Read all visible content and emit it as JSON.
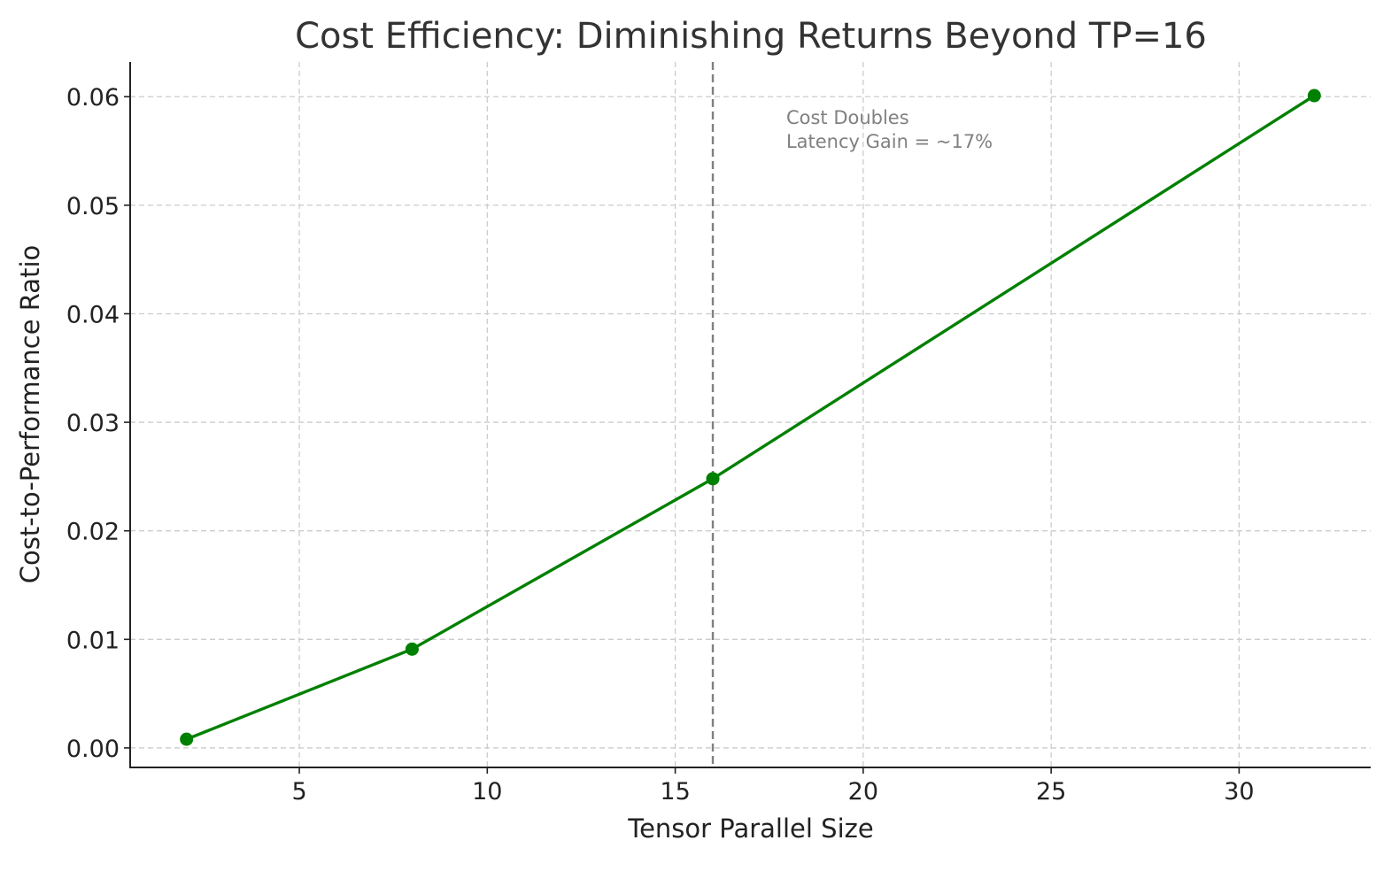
{
  "chart_data": {
    "type": "line",
    "title": "Cost Efficiency: Diminishing Returns Beyond TP=16",
    "xlabel": "Tensor Parallel Size",
    "ylabel": "Cost-to-Performance Ratio",
    "x": [
      2,
      8,
      16,
      32
    ],
    "series": [
      {
        "values": [
          0.0008,
          0.0091,
          0.0248,
          0.0601
        ],
        "color": "#008000",
        "marker": "circle"
      }
    ],
    "xlim": [
      0.5,
      33.5
    ],
    "ylim": [
      -0.0018,
      0.0632
    ],
    "xticks": [
      5,
      10,
      15,
      20,
      25,
      30
    ],
    "xtick_labels": [
      "5",
      "10",
      "15",
      "20",
      "25",
      "30"
    ],
    "yticks": [
      0,
      0.01,
      0.02,
      0.03,
      0.04,
      0.05,
      0.06
    ],
    "ytick_labels": [
      "0.00",
      "0.01",
      "0.02",
      "0.03",
      "0.04",
      "0.05",
      "0.06"
    ],
    "grid": true,
    "vline": {
      "x": 16,
      "style": "dashed",
      "color": "#808080"
    },
    "annotation": {
      "lines": [
        "Cost Doubles",
        "Latency Gain = ~17%"
      ],
      "x": 18,
      "y": 0.057,
      "color": "#808080"
    }
  }
}
